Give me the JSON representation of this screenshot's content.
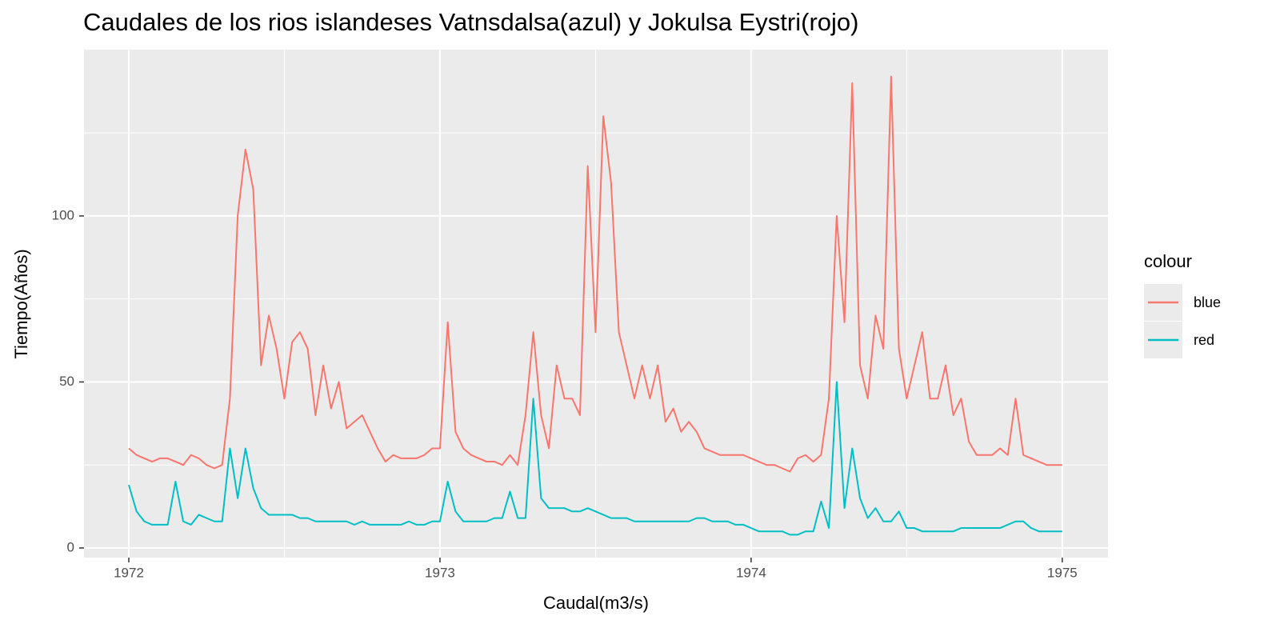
{
  "chart_data": {
    "type": "line",
    "title": "Caudales de los rios islandeses Vatnsdalsa(azul) y Jokulsa Eystri(rojo)",
    "x_label": "Caudal(m3/s)",
    "y_label": "Tiempo(Años)",
    "legend_title": "colour",
    "legend_position": "right",
    "grid": true,
    "x": [
      1972,
      1972.025,
      1972.05,
      1972.075,
      1972.1,
      1972.125,
      1972.15,
      1972.175,
      1972.2,
      1972.225,
      1972.25,
      1972.275,
      1972.3,
      1972.325,
      1972.35,
      1972.375,
      1972.4,
      1972.425,
      1972.45,
      1972.475,
      1972.5,
      1972.525,
      1972.55,
      1972.575,
      1972.6,
      1972.625,
      1972.65,
      1972.675,
      1972.7,
      1972.725,
      1972.75,
      1972.775,
      1972.8,
      1972.825,
      1972.85,
      1972.875,
      1972.9,
      1972.925,
      1972.95,
      1972.975,
      1973,
      1973.025,
      1973.05,
      1973.075,
      1973.1,
      1973.125,
      1973.15,
      1973.175,
      1973.2,
      1973.225,
      1973.25,
      1973.275,
      1973.3,
      1973.325,
      1973.35,
      1973.375,
      1973.4,
      1973.425,
      1973.45,
      1973.475,
      1973.5,
      1973.525,
      1973.55,
      1973.575,
      1973.6,
      1973.625,
      1973.65,
      1973.675,
      1973.7,
      1973.725,
      1973.75,
      1973.775,
      1973.8,
      1973.825,
      1973.85,
      1973.875,
      1973.9,
      1973.925,
      1973.95,
      1973.975,
      1974,
      1974.025,
      1974.05,
      1974.075,
      1974.1,
      1974.125,
      1974.15,
      1974.175,
      1974.2,
      1974.225,
      1974.25,
      1974.275,
      1974.3,
      1974.325,
      1974.35,
      1974.375,
      1974.4,
      1974.425,
      1974.45,
      1974.475,
      1974.5,
      1974.525,
      1974.55,
      1974.575,
      1974.6,
      1974.625,
      1974.65,
      1974.675,
      1974.7,
      1974.725,
      1974.75,
      1974.775,
      1974.8,
      1974.825,
      1974.85,
      1974.875,
      1974.9,
      1974.925,
      1974.95,
      1974.975,
      1975
    ],
    "series": [
      {
        "name": "blue",
        "color": "#F8766D",
        "values": [
          30,
          28,
          27,
          26,
          27,
          27,
          26,
          25,
          28,
          27,
          25,
          24,
          25,
          45,
          100,
          120,
          108,
          55,
          70,
          60,
          45,
          62,
          65,
          60,
          40,
          55,
          42,
          50,
          36,
          38,
          40,
          35,
          30,
          26,
          28,
          27,
          27,
          27,
          28,
          30,
          30,
          68,
          35,
          30,
          28,
          27,
          26,
          26,
          25,
          28,
          25,
          40,
          65,
          40,
          30,
          55,
          45,
          45,
          40,
          115,
          65,
          130,
          110,
          65,
          55,
          45,
          55,
          45,
          55,
          38,
          42,
          35,
          38,
          35,
          30,
          29,
          28,
          28,
          28,
          28,
          27,
          26,
          25,
          25,
          24,
          23,
          27,
          28,
          26,
          28,
          45,
          100,
          68,
          140,
          55,
          45,
          70,
          60,
          142,
          60,
          45,
          55,
          65,
          45,
          45,
          55,
          40,
          45,
          32,
          28,
          28,
          28,
          30,
          28,
          45,
          28,
          27,
          26,
          25,
          25,
          25
        ]
      },
      {
        "name": "red",
        "color": "#00BFC4",
        "values": [
          19,
          11,
          8,
          7,
          7,
          7,
          20,
          8,
          7,
          10,
          9,
          8,
          8,
          30,
          15,
          30,
          18,
          12,
          10,
          10,
          10,
          10,
          9,
          9,
          8,
          8,
          8,
          8,
          8,
          7,
          8,
          7,
          7,
          7,
          7,
          7,
          8,
          7,
          7,
          8,
          8,
          20,
          11,
          8,
          8,
          8,
          8,
          9,
          9,
          17,
          9,
          9,
          45,
          15,
          12,
          12,
          12,
          11,
          11,
          12,
          11,
          10,
          9,
          9,
          9,
          8,
          8,
          8,
          8,
          8,
          8,
          8,
          8,
          9,
          9,
          8,
          8,
          8,
          7,
          7,
          6,
          5,
          5,
          5,
          5,
          4,
          4,
          5,
          5,
          14,
          6,
          50,
          12,
          30,
          15,
          9,
          12,
          8,
          8,
          11,
          6,
          6,
          5,
          5,
          5,
          5,
          5,
          6,
          6,
          6,
          6,
          6,
          6,
          7,
          8,
          8,
          6,
          5,
          5,
          5,
          5
        ]
      }
    ],
    "xlim": [
      1971.856,
      1975.147
    ],
    "ylim": [
      -2.9,
      150.1
    ],
    "xticks": [
      1972,
      1973,
      1974,
      1975
    ],
    "yticks": [
      0,
      50,
      100
    ]
  }
}
